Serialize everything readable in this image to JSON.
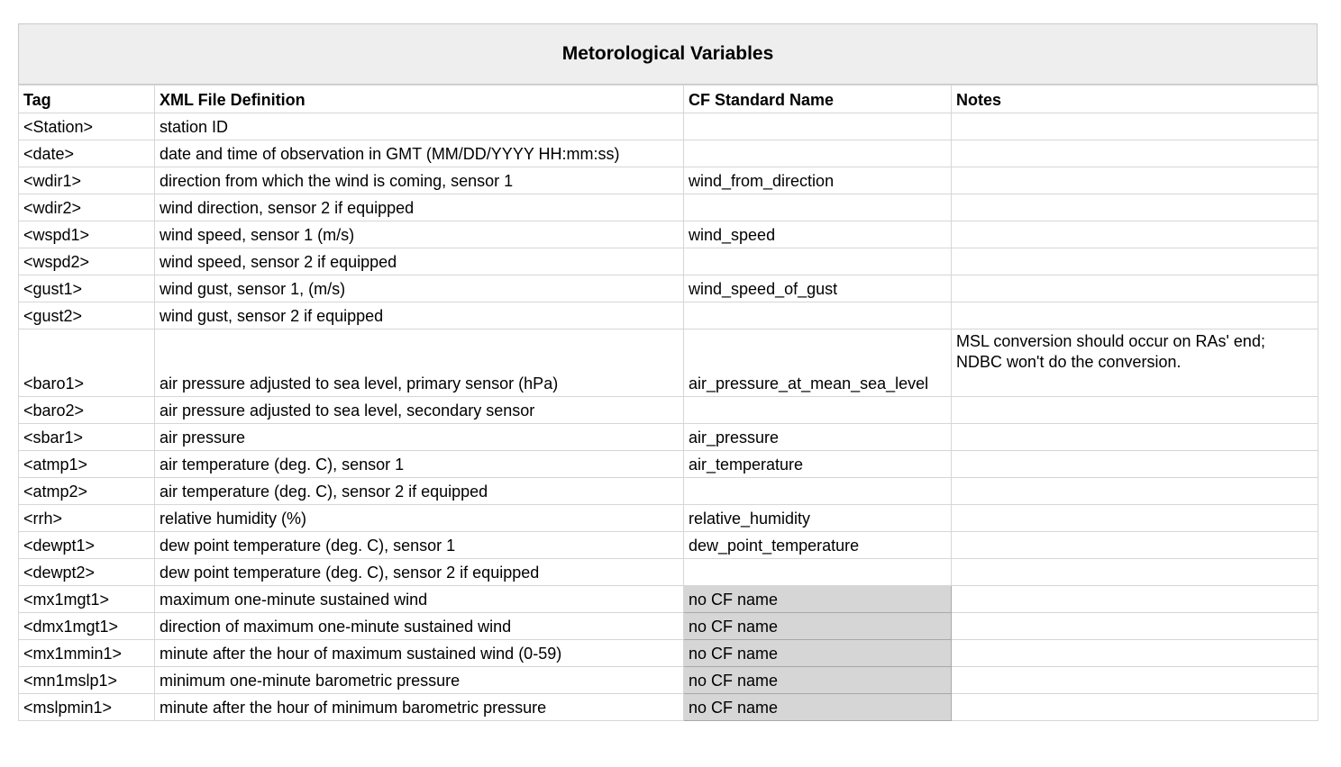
{
  "title": "Metorological Variables",
  "columns": [
    "Tag",
    "XML File Definition",
    "CF Standard Name",
    "Notes"
  ],
  "rows": [
    {
      "tag": "<Station>",
      "definition": "station ID",
      "cf": "",
      "notes": ""
    },
    {
      "tag": "<date>",
      "definition": "date and time of observation in GMT (MM/DD/YYYY HH:mm:ss)",
      "cf": "",
      "notes": ""
    },
    {
      "tag": "<wdir1>",
      "definition": "direction from which the wind is coming, sensor 1",
      "cf": "wind_from_direction",
      "notes": ""
    },
    {
      "tag": "<wdir2>",
      "definition": "wind direction, sensor 2 if equipped",
      "cf": "",
      "notes": ""
    },
    {
      "tag": "<wspd1>",
      "definition": "wind speed, sensor 1 (m/s)",
      "cf": "wind_speed",
      "notes": ""
    },
    {
      "tag": "<wspd2>",
      "definition": "wind speed, sensor 2 if equipped",
      "cf": "",
      "notes": ""
    },
    {
      "tag": "<gust1>",
      "definition": "wind gust, sensor 1, (m/s)",
      "cf": "wind_speed_of_gust",
      "notes": ""
    },
    {
      "tag": "<gust2>",
      "definition": "wind gust, sensor 2 if equipped",
      "cf": "",
      "notes": ""
    },
    {
      "tag": "<baro1>",
      "definition": "air pressure adjusted to sea level, primary sensor (hPa)",
      "cf": "air_pressure_at_mean_sea_level",
      "notes": "MSL conversion should occur on RAs' end; NDBC won't do the conversion."
    },
    {
      "tag": "<baro2>",
      "definition": "air pressure adjusted to sea level, secondary sensor",
      "cf": "",
      "notes": ""
    },
    {
      "tag": "<sbar1>",
      "definition": "air pressure",
      "cf": "air_pressure",
      "notes": ""
    },
    {
      "tag": "<atmp1>",
      "definition": "air temperature (deg. C), sensor 1",
      "cf": "air_temperature",
      "notes": ""
    },
    {
      "tag": "<atmp2>",
      "definition": "air temperature (deg. C), sensor 2 if equipped",
      "cf": "",
      "notes": ""
    },
    {
      "tag": "<rrh>",
      "definition": "relative humidity (%)",
      "cf": "relative_humidity",
      "notes": ""
    },
    {
      "tag": "<dewpt1>",
      "definition": "dew point temperature (deg. C), sensor 1",
      "cf": "dew_point_temperature",
      "notes": ""
    },
    {
      "tag": "<dewpt2>",
      "definition": "dew point temperature (deg. C), sensor 2 if equipped",
      "cf": "",
      "notes": ""
    },
    {
      "tag": "<mx1mgt1>",
      "definition": "maximum one-minute sustained wind",
      "cf": "no CF name",
      "notes": ""
    },
    {
      "tag": "<dmx1mgt1>",
      "definition": "direction of maximum one-minute sustained wind",
      "cf": "no CF name",
      "notes": ""
    },
    {
      "tag": "<mx1mmin1>",
      "definition": "minute after the hour of maximum sustained wind (0-59)",
      "cf": "no CF name",
      "notes": ""
    },
    {
      "tag": "<mn1mslp1>",
      "definition": "minimum one-minute barometric pressure",
      "cf": "no CF name",
      "notes": ""
    },
    {
      "tag": "<mslpmin1>",
      "definition": "minute after the hour of minimum barometric pressure",
      "cf": "no CF name",
      "notes": ""
    }
  ],
  "colors": {
    "title_bg": "#eeeeee",
    "grid_line": "#d6d6d6",
    "no_cf_fill": "#d6d6d6"
  }
}
